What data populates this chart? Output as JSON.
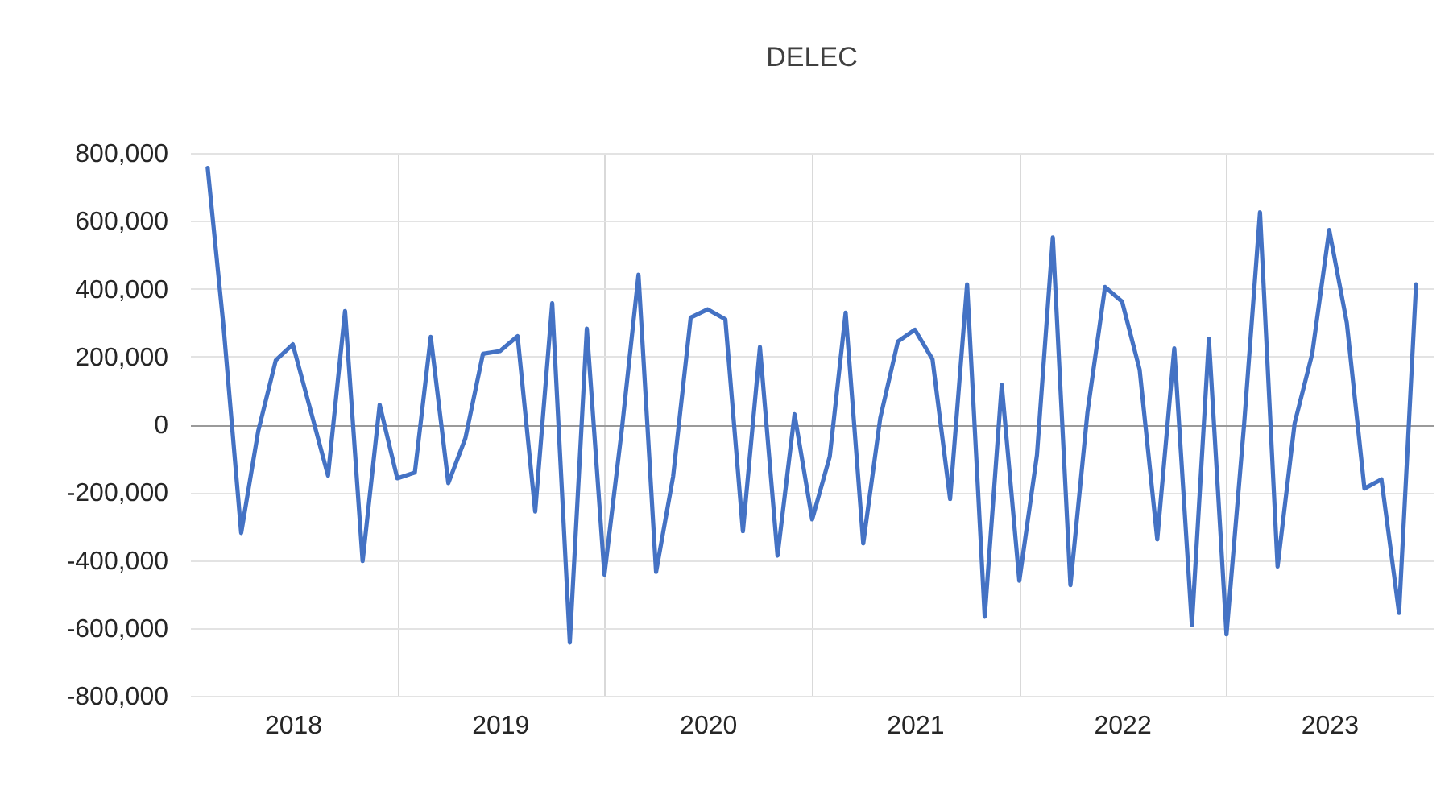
{
  "chart_data": {
    "type": "line",
    "title": "DELEC",
    "x": [
      "2018-02",
      "2018-03",
      "2018-04",
      "2018-05",
      "2018-06",
      "2018-07",
      "2018-08",
      "2018-09",
      "2018-10",
      "2018-11",
      "2018-12",
      "2019-01",
      "2019-02",
      "2019-03",
      "2019-04",
      "2019-05",
      "2019-06",
      "2019-07",
      "2019-08",
      "2019-09",
      "2019-10",
      "2019-11",
      "2019-12",
      "2020-01",
      "2020-02",
      "2020-03",
      "2020-04",
      "2020-05",
      "2020-06",
      "2020-07",
      "2020-08",
      "2020-09",
      "2020-10",
      "2020-11",
      "2020-12",
      "2021-01",
      "2021-02",
      "2021-03",
      "2021-04",
      "2021-05",
      "2021-06",
      "2021-07",
      "2021-08",
      "2021-09",
      "2021-10",
      "2021-11",
      "2021-12",
      "2022-01",
      "2022-02",
      "2022-03",
      "2022-04",
      "2022-05",
      "2022-06",
      "2022-07",
      "2022-08",
      "2022-09",
      "2022-10",
      "2022-11",
      "2022-12",
      "2023-01",
      "2023-02",
      "2023-03",
      "2023-04",
      "2023-05",
      "2023-06",
      "2023-07",
      "2023-08",
      "2023-09",
      "2023-10",
      "2023-11",
      "2023-12"
    ],
    "series": [
      {
        "color": "#4472c4",
        "values": [
          756000,
          287000,
          -320000,
          -20000,
          189000,
          236000,
          43000,
          -151000,
          334000,
          -403000,
          58000,
          -159000,
          -142000,
          258000,
          -173000,
          -41000,
          208000,
          216000,
          260000,
          -257000,
          357000,
          -643000,
          282000,
          -443000,
          -10000,
          441000,
          -435000,
          -154000,
          315000,
          339000,
          310000,
          -315000,
          228000,
          -387000,
          30000,
          -280000,
          -95000,
          329000,
          -351000,
          19000,
          244000,
          279000,
          192000,
          -220000,
          413000,
          -567000,
          117000,
          -461000,
          -91000,
          551000,
          -474000,
          35000,
          405000,
          362000,
          161000,
          -339000,
          224000,
          -592000,
          252000,
          -619000,
          0,
          625000,
          -419000,
          3000,
          208000,
          573000,
          299000,
          -189000,
          -162000,
          -556000,
          413000
        ]
      }
    ],
    "xlim": [
      "2018-01",
      "2024-01"
    ],
    "xticks": [
      {
        "value": "2018-07",
        "label": "2018"
      },
      {
        "value": "2019-01",
        "label": null
      },
      {
        "value": "2019-07",
        "label": "2019"
      },
      {
        "value": "2020-01",
        "label": null
      },
      {
        "value": "2020-07",
        "label": "2020"
      },
      {
        "value": "2021-01",
        "label": null
      },
      {
        "value": "2021-07",
        "label": "2021"
      },
      {
        "value": "2022-01",
        "label": null
      },
      {
        "value": "2022-07",
        "label": "2022"
      },
      {
        "value": "2023-01",
        "label": null
      },
      {
        "value": "2023-07",
        "label": "2023"
      }
    ],
    "ylim": [
      -800000,
      800000
    ],
    "yticks": [
      {
        "value": -800000,
        "label": "-800,000"
      },
      {
        "value": -600000,
        "label": "-600,000"
      },
      {
        "value": -400000,
        "label": "-400,000"
      },
      {
        "value": -200000,
        "label": "-200,000"
      },
      0,
      {
        "value": 200000,
        "label": "200,000"
      },
      {
        "value": 400000,
        "label": "400,000"
      },
      {
        "value": 600000,
        "label": "600,000"
      },
      {
        "value": 800000,
        "label": "800,000"
      }
    ],
    "grid": true,
    "legend": false,
    "marker": "none",
    "line_style": "solid"
  }
}
